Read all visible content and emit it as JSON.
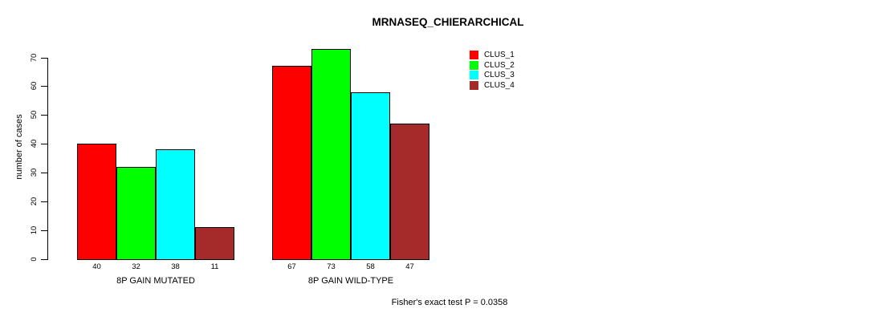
{
  "title": "MRNASEQ_CHIERARCHICAL",
  "chart_data": {
    "type": "bar",
    "title": "MRNASEQ_CHIERARCHICAL",
    "categories": [
      "8P GAIN MUTATED",
      "8P GAIN WILD-TYPE"
    ],
    "series": [
      {
        "name": "CLUS_1",
        "color": "#FF0000",
        "values": [
          40,
          67
        ]
      },
      {
        "name": "CLUS_2",
        "color": "#00FF00",
        "values": [
          32,
          73
        ]
      },
      {
        "name": "CLUS_3",
        "color": "#00FFFF",
        "values": [
          38,
          58
        ]
      },
      {
        "name": "CLUS_4",
        "color": "#A52A2A",
        "values": [
          11,
          47
        ]
      }
    ],
    "xlabel": "",
    "ylabel": "number of cases",
    "ylim": [
      0,
      70
    ],
    "yticks": [
      0,
      10,
      20,
      30,
      40,
      50,
      60,
      70
    ],
    "grid": false,
    "legend_position": "top-right",
    "bar_value_labels_shown": true,
    "annotation": "Fisher's exact test P = 0.0358"
  }
}
